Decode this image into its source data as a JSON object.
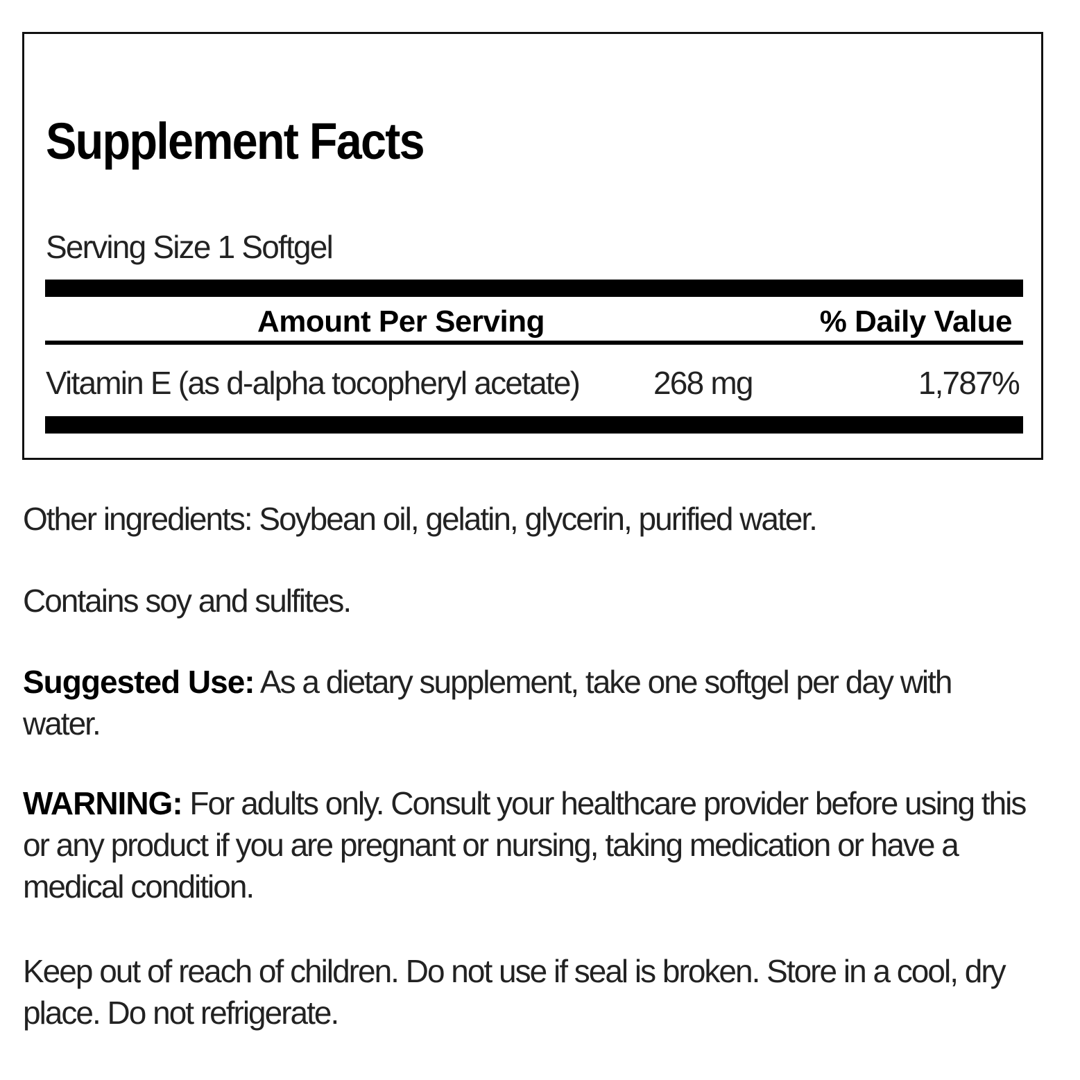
{
  "facts": {
    "title": "Supplement Facts",
    "serving_size": "Serving Size 1 Softgel",
    "header_amount": "Amount Per Serving",
    "header_dv": "% Daily Value",
    "rows": [
      {
        "name": "Vitamin E (as d-alpha tocopheryl acetate)",
        "amount": "268 mg",
        "dv": "1,787%"
      }
    ]
  },
  "other_ingredients": "Other ingredients: Soybean oil, gelatin, glycerin, purified water.",
  "contains": "Contains soy and sulfites.",
  "suggested_use": {
    "label": "Suggested Use:",
    "text": " As a dietary supplement, take one softgel per day with water."
  },
  "warning": {
    "label": "WARNING:",
    "text": " For adults only. Consult your healthcare provider before using this or any product if you are pregnant or nursing, taking medication or have a medical condition."
  },
  "storage": "Keep out of reach of children. Do not use if seal is broken. Store in a cool, dry place. Do not refrigerate."
}
